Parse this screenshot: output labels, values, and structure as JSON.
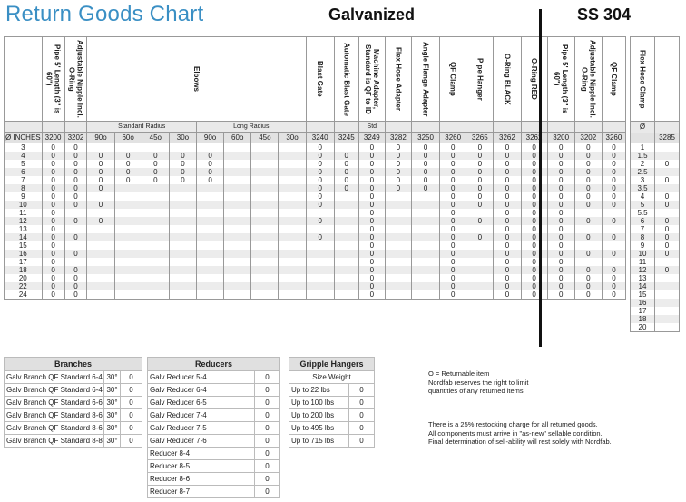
{
  "title": "Return Goods Chart",
  "group_galvanized": "Galvanized",
  "group_ss": "SS 304",
  "headers": {
    "pipe": "Pipe 5' Length (3\" is 60\")",
    "nipple": "Adjustable Nipple Incl. O-Ring",
    "elbows": "Elbows",
    "blast_gate": "Blast Gate",
    "auto_blast_gate": "Automatic Blast Gate",
    "machine_adapter": "Machine Adapter, Standard is QF to ID",
    "flex_hose_adapter": "Flex Hose Adapter",
    "angle_flange": "Angle Flange Adapter",
    "qf_clamp": "QF Clamp",
    "pipe_hanger": "Pipe Hanger",
    "oring_black": "O-Ring BLACK",
    "oring_red": "O-Ring RED",
    "ss_pipe": "Pipe 5' Length (3\" is 60\")",
    "ss_nipple": "Adjustable Nipple Incl. O-Ring",
    "ss_qf_clamp": "QF Clamp",
    "flex_clamp": "Flex Hose Clamp"
  },
  "subheaders": {
    "standard_radius": "Standard Radius",
    "long_radius": "Long Radius",
    "std": "Std",
    "flex_sym": "Ø"
  },
  "codes": [
    "Ø INCHES",
    "3200",
    "3202",
    "90o",
    "60o",
    "45o",
    "30o",
    "90o",
    "60o",
    "45o",
    "30o",
    "3240",
    "3245",
    "3249",
    "3282",
    "3250",
    "3260",
    "3265",
    "3262",
    "3262",
    "3200",
    "3202",
    "3260"
  ],
  "flex_code": "3285",
  "rows": [
    [
      "3",
      "0",
      "0",
      "",
      "",
      "",
      "",
      "",
      "",
      "",
      "",
      "0",
      "",
      "0",
      "0",
      "0",
      "0",
      "0",
      "0",
      "0",
      "0",
      "0",
      "0"
    ],
    [
      "4",
      "0",
      "0",
      "0",
      "0",
      "0",
      "0",
      "0",
      "",
      "",
      "",
      "0",
      "0",
      "0",
      "0",
      "0",
      "0",
      "0",
      "0",
      "0",
      "0",
      "0",
      "0"
    ],
    [
      "5",
      "0",
      "0",
      "0",
      "0",
      "0",
      "0",
      "0",
      "",
      "",
      "",
      "0",
      "0",
      "0",
      "0",
      "0",
      "0",
      "0",
      "0",
      "0",
      "0",
      "0",
      "0"
    ],
    [
      "6",
      "0",
      "0",
      "0",
      "0",
      "0",
      "0",
      "0",
      "",
      "",
      "",
      "0",
      "0",
      "0",
      "0",
      "0",
      "0",
      "0",
      "0",
      "0",
      "0",
      "0",
      "0"
    ],
    [
      "7",
      "0",
      "0",
      "0",
      "0",
      "0",
      "0",
      "0",
      "",
      "",
      "",
      "0",
      "0",
      "0",
      "0",
      "0",
      "0",
      "0",
      "0",
      "0",
      "0",
      "0",
      "0"
    ],
    [
      "8",
      "0",
      "0",
      "0",
      "",
      "",
      "",
      "",
      "",
      "",
      "",
      "0",
      "0",
      "0",
      "0",
      "0",
      "0",
      "0",
      "0",
      "0",
      "0",
      "0",
      "0"
    ],
    [
      "9",
      "0",
      "0",
      "",
      "",
      "",
      "",
      "",
      "",
      "",
      "",
      "0",
      "",
      "0",
      "",
      "",
      "0",
      "0",
      "0",
      "0",
      "0",
      "0",
      "0"
    ],
    [
      "10",
      "0",
      "0",
      "0",
      "",
      "",
      "",
      "",
      "",
      "",
      "",
      "0",
      "",
      "0",
      "",
      "",
      "0",
      "0",
      "0",
      "0",
      "0",
      "0",
      "0"
    ],
    [
      "11",
      "0",
      "",
      "",
      "",
      "",
      "",
      "",
      "",
      "",
      "",
      "",
      "",
      "0",
      "",
      "",
      "0",
      "",
      "0",
      "0",
      "0",
      "",
      ""
    ],
    [
      "12",
      "0",
      "0",
      "0",
      "",
      "",
      "",
      "",
      "",
      "",
      "",
      "0",
      "",
      "0",
      "",
      "",
      "0",
      "0",
      "0",
      "0",
      "0",
      "0",
      "0"
    ],
    [
      "13",
      "0",
      "",
      "",
      "",
      "",
      "",
      "",
      "",
      "",
      "",
      "",
      "",
      "0",
      "",
      "",
      "0",
      "",
      "0",
      "0",
      "0",
      "",
      ""
    ],
    [
      "14",
      "0",
      "0",
      "",
      "",
      "",
      "",
      "",
      "",
      "",
      "",
      "0",
      "",
      "0",
      "",
      "",
      "0",
      "0",
      "0",
      "0",
      "0",
      "0",
      "0"
    ],
    [
      "15",
      "0",
      "",
      "",
      "",
      "",
      "",
      "",
      "",
      "",
      "",
      "",
      "",
      "0",
      "",
      "",
      "0",
      "",
      "0",
      "0",
      "0",
      "",
      ""
    ],
    [
      "16",
      "0",
      "0",
      "",
      "",
      "",
      "",
      "",
      "",
      "",
      "",
      "",
      "",
      "0",
      "",
      "",
      "0",
      "",
      "0",
      "0",
      "0",
      "0",
      "0"
    ],
    [
      "17",
      "0",
      "",
      "",
      "",
      "",
      "",
      "",
      "",
      "",
      "",
      "",
      "",
      "0",
      "",
      "",
      "0",
      "",
      "0",
      "0",
      "0",
      "",
      ""
    ],
    [
      "18",
      "0",
      "0",
      "",
      "",
      "",
      "",
      "",
      "",
      "",
      "",
      "",
      "",
      "0",
      "",
      "",
      "0",
      "",
      "0",
      "0",
      "0",
      "0",
      "0"
    ],
    [
      "20",
      "0",
      "0",
      "",
      "",
      "",
      "",
      "",
      "",
      "",
      "",
      "",
      "",
      "0",
      "",
      "",
      "0",
      "",
      "0",
      "0",
      "0",
      "0",
      "0"
    ],
    [
      "22",
      "0",
      "0",
      "",
      "",
      "",
      "",
      "",
      "",
      "",
      "",
      "",
      "",
      "0",
      "",
      "",
      "0",
      "",
      "0",
      "0",
      "0",
      "0",
      "0"
    ],
    [
      "24",
      "0",
      "0",
      "",
      "",
      "",
      "",
      "",
      "",
      "",
      "",
      "",
      "",
      "0",
      "",
      "",
      "0",
      "",
      "0",
      "0",
      "0",
      "0",
      "0"
    ]
  ],
  "flex_rows": [
    [
      "1",
      ""
    ],
    [
      "1.5",
      ""
    ],
    [
      "2",
      "0"
    ],
    [
      "2.5",
      ""
    ],
    [
      "3",
      "0"
    ],
    [
      "3.5",
      ""
    ],
    [
      "4",
      "0"
    ],
    [
      "5",
      "0"
    ],
    [
      "5.5",
      ""
    ],
    [
      "6",
      "0"
    ],
    [
      "7",
      "0"
    ],
    [
      "8",
      "0"
    ],
    [
      "9",
      "0"
    ],
    [
      "10",
      "0"
    ],
    [
      "11",
      ""
    ],
    [
      "12",
      "0"
    ],
    [
      "13",
      ""
    ],
    [
      "14",
      ""
    ],
    [
      "15",
      ""
    ],
    [
      "16",
      ""
    ],
    [
      "17",
      ""
    ],
    [
      "18",
      ""
    ],
    [
      "20",
      ""
    ]
  ],
  "branches": {
    "title": "Branches",
    "items": [
      {
        "name": "Galv Branch QF Standard 6-4-4",
        "angle": "30°",
        "val": "0"
      },
      {
        "name": "Galv Branch QF Standard 6-4-6",
        "angle": "30°",
        "val": "0"
      },
      {
        "name": "Galv Branch QF Standard 6-6-6",
        "angle": "30°",
        "val": "0"
      },
      {
        "name": "Galv Branch QF Standard 8-6-6",
        "angle": "30°",
        "val": "0"
      },
      {
        "name": "Galv Branch QF Standard 8-6-8",
        "angle": "30°",
        "val": "0"
      },
      {
        "name": "Galv Branch QF Standard 8-8-8",
        "angle": "30°",
        "val": "0"
      }
    ]
  },
  "reducers": {
    "title": "Reducers",
    "items": [
      {
        "name": "Galv Reducer 5-4",
        "val": "0"
      },
      {
        "name": "Galv Reducer 6-4",
        "val": "0"
      },
      {
        "name": "Galv Reducer 6-5",
        "val": "0"
      },
      {
        "name": "Galv Reducer 7-4",
        "val": "0"
      },
      {
        "name": "Galv Reducer 7-5",
        "val": "0"
      },
      {
        "name": "Galv Reducer 7-6",
        "val": "0"
      },
      {
        "name": "Reducer 8-4",
        "val": "0"
      },
      {
        "name": "Reducer 8-5",
        "val": "0"
      },
      {
        "name": "Reducer 8-6",
        "val": "0"
      },
      {
        "name": "Reducer 8-7",
        "val": "0"
      }
    ]
  },
  "gripple": {
    "title": "Gripple Hangers",
    "subheader": "Size Weight",
    "items": [
      {
        "name": "Up to 22 lbs",
        "val": "0"
      },
      {
        "name": "Up to 100 lbs",
        "val": "0"
      },
      {
        "name": "Up to 200 lbs",
        "val": "0"
      },
      {
        "name": "Up to 495 lbs",
        "val": "0"
      },
      {
        "name": "Up to 715 lbs",
        "val": "0"
      }
    ]
  },
  "notes": {
    "legend": "O = Returnable item",
    "reserve1": "Nordfab reserves the right to limit",
    "reserve2": "quantities of any returned items",
    "restock": "There is a 25% restocking charge for all returned goods.",
    "condition": "All components must arrive in \"as-new\" sellable condition.",
    "final": "Final determination of sell-ability will rest solely with Nordfab."
  }
}
